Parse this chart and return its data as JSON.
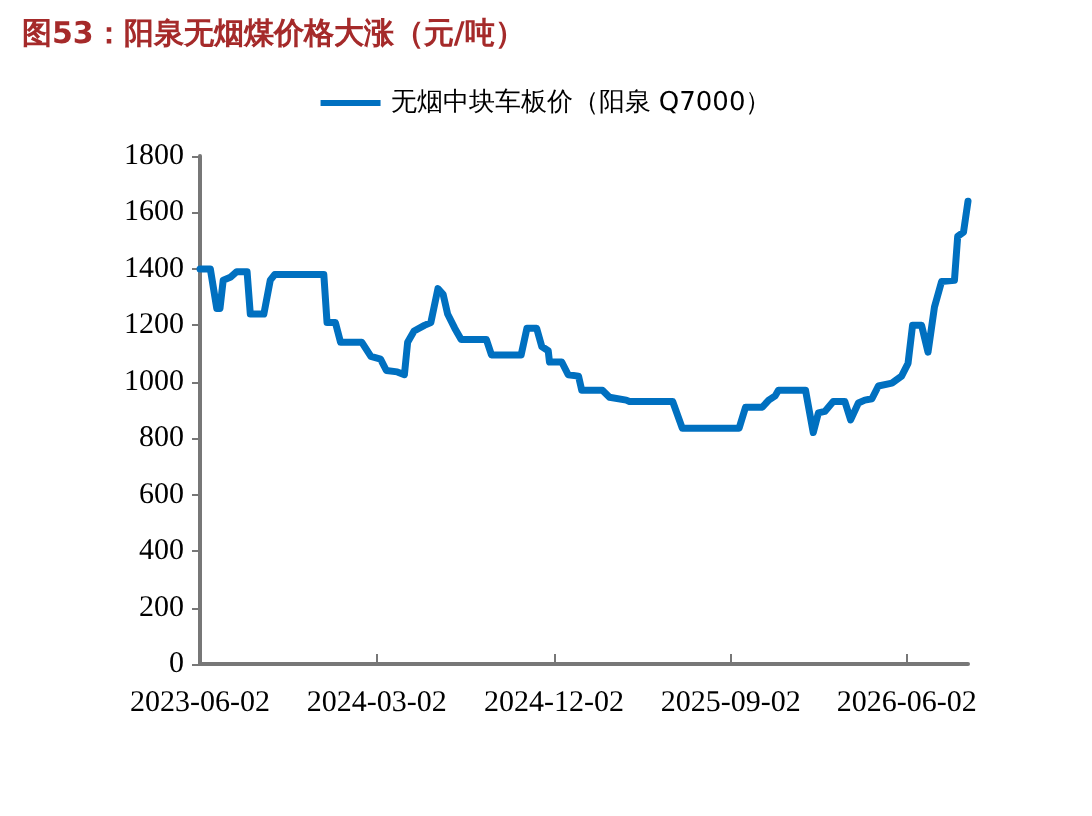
{
  "chart_data": {
    "type": "line",
    "title": "图53：阳泉无烟煤价格大涨（元/吨）",
    "x": [
      "2023-06-02",
      "2023-06-18",
      "2023-06-28",
      "2023-07-03",
      "2023-07-08",
      "2023-07-19",
      "2023-07-29",
      "2023-08-14",
      "2023-08-19",
      "2023-09-09",
      "2023-09-19",
      "2023-09-26",
      "2023-12-11",
      "2023-12-16",
      "2023-12-29",
      "2024-01-06",
      "2024-02-08",
      "2024-02-22",
      "2024-03-08",
      "2024-03-17",
      "2024-04-03",
      "2024-04-14",
      "2024-04-19",
      "2024-04-29",
      "2024-05-15",
      "2024-05-25",
      "2024-06-05",
      "2024-06-13",
      "2024-06-20",
      "2024-07-01",
      "2024-07-11",
      "2024-08-19",
      "2024-08-27",
      "2024-10-12",
      "2024-10-21",
      "2024-11-05",
      "2024-11-13",
      "2024-11-23",
      "2024-11-25",
      "2024-12-14",
      "2024-12-24",
      "2025-01-09",
      "2025-01-14",
      "2025-02-15",
      "2025-02-26",
      "2025-03-24",
      "2025-03-29",
      "2025-06-04",
      "2025-06-19",
      "2025-09-15",
      "2025-09-25",
      "2025-10-21",
      "2025-10-31",
      "2025-11-10",
      "2025-11-15",
      "2025-12-27",
      "2026-01-08",
      "2026-01-16",
      "2026-01-26",
      "2026-02-08",
      "2026-02-26",
      "2026-03-07",
      "2026-03-19",
      "2026-03-29",
      "2026-04-09",
      "2026-04-19",
      "2026-05-10",
      "2026-05-25",
      "2026-06-04",
      "2026-06-11",
      "2026-06-25",
      "2026-07-05",
      "2026-07-15",
      "2026-07-26",
      "2026-08-15",
      "2026-08-20",
      "2026-08-29",
      "2026-09-05"
    ],
    "series": [
      {
        "name": "无烟中块车板价（阳泉 Q7000）",
        "color": "#0070c0",
        "values": [
          1400,
          1400,
          1260,
          1260,
          1360,
          1370,
          1390,
          1390,
          1240,
          1240,
          1360,
          1380,
          1380,
          1210,
          1210,
          1140,
          1140,
          1090,
          1080,
          1040,
          1035,
          1025,
          1140,
          1180,
          1200,
          1210,
          1330,
          1310,
          1240,
          1190,
          1150,
          1150,
          1095,
          1095,
          1190,
          1190,
          1125,
          1110,
          1070,
          1070,
          1025,
          1020,
          970,
          970,
          945,
          935,
          930,
          930,
          835,
          835,
          910,
          910,
          935,
          950,
          970,
          970,
          820,
          890,
          895,
          930,
          930,
          865,
          925,
          935,
          940,
          985,
          995,
          1020,
          1065,
          1200,
          1200,
          1105,
          1265,
          1355,
          1360,
          1515,
          1530,
          1640
        ]
      }
    ],
    "xlim": [
      "2023-06-02",
      "2026-09-05"
    ],
    "xticks": [
      "2023-06-02",
      "2024-03-02",
      "2024-12-02",
      "2025-09-02",
      "2026-06-02"
    ],
    "ylim": [
      0,
      1800
    ],
    "yticks": [
      0,
      200,
      400,
      600,
      800,
      1000,
      1200,
      1400,
      1600,
      1800
    ],
    "grid": false,
    "legend": "top",
    "marker": "none",
    "line_style": "solid"
  }
}
